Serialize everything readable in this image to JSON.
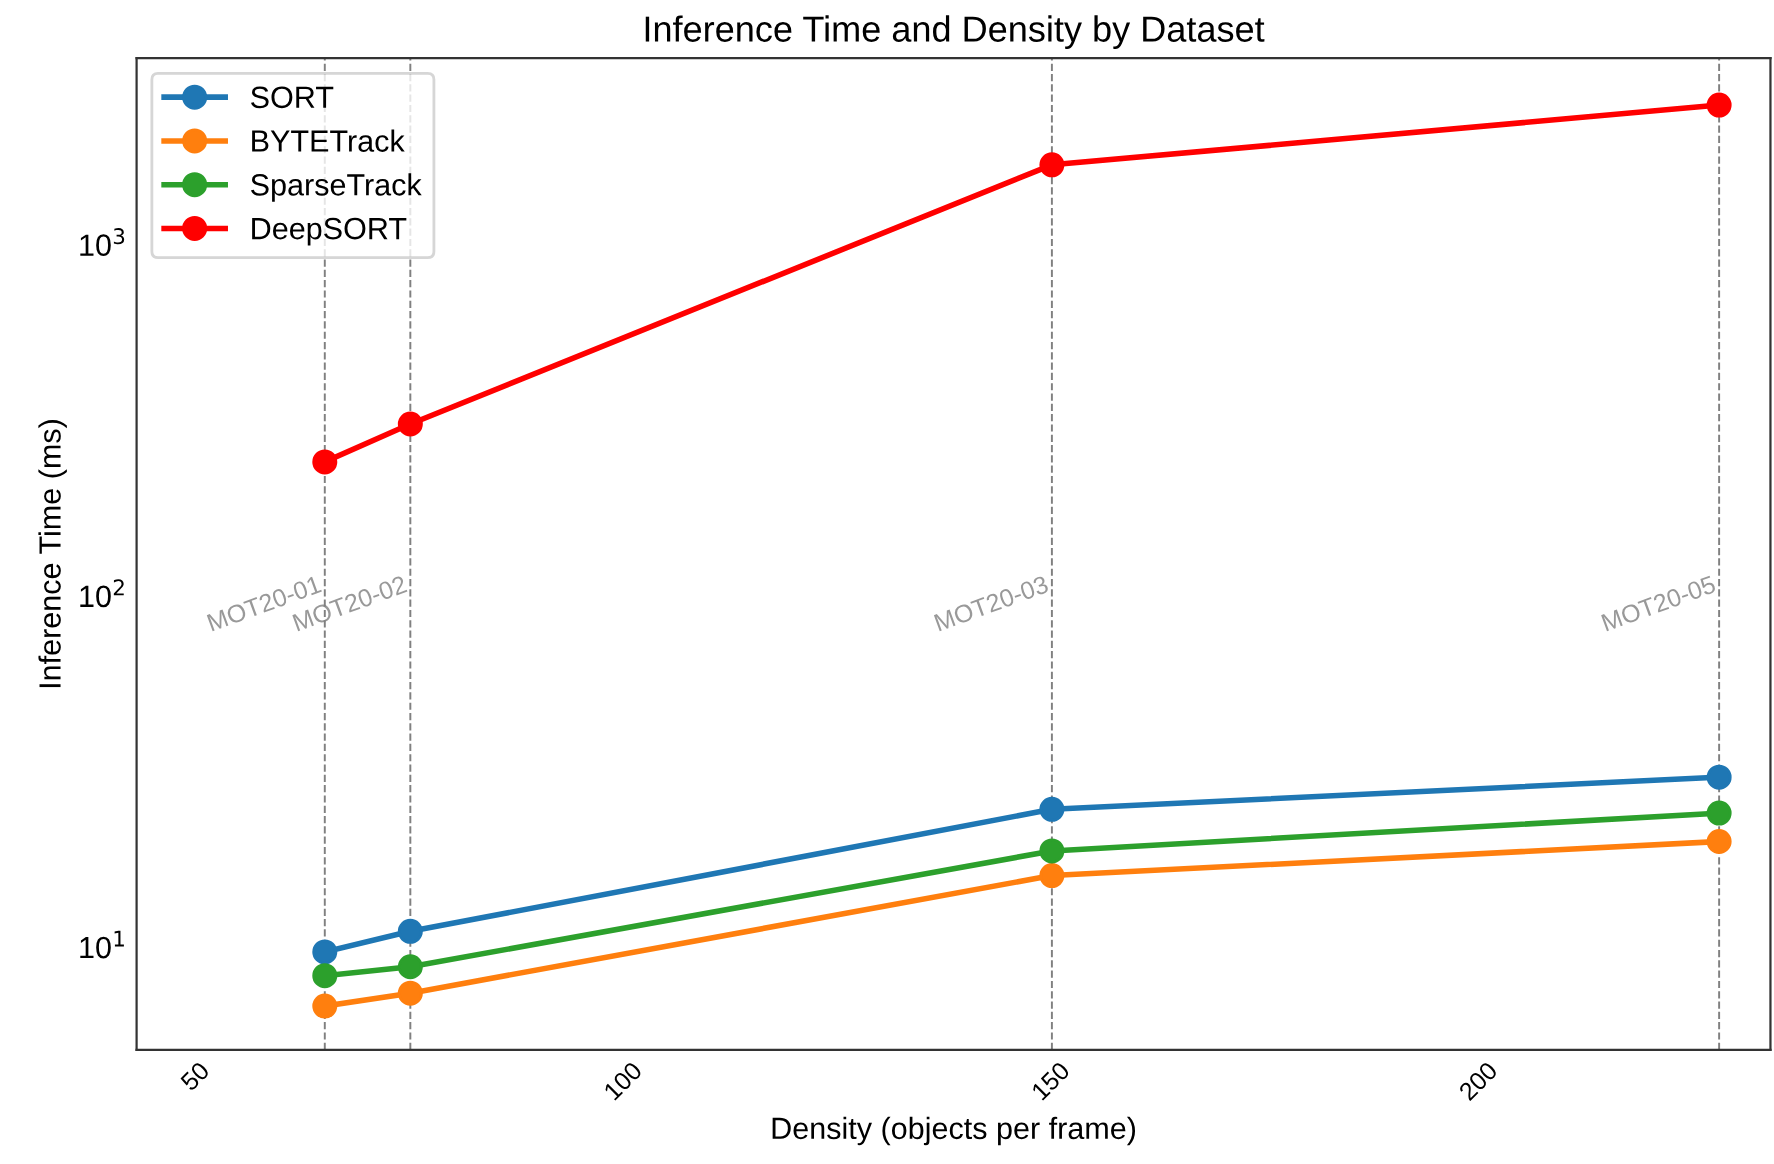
{
  "chart_data": {
    "type": "line",
    "title": "Inference Time and Density by Dataset",
    "xlabel": "Density (objects per frame)",
    "ylabel": "Inference Time (ms)",
    "x": [
      65,
      75,
      150,
      228
    ],
    "series": [
      {
        "name": "SORT",
        "color": "#1f77b4",
        "values": [
          9.7,
          11.1,
          24.7,
          30.5
        ]
      },
      {
        "name": "BYTETrack",
        "color": "#ff7f0e",
        "values": [
          6.8,
          7.4,
          16.0,
          20.0
        ]
      },
      {
        "name": "SparseTrack",
        "color": "#2ca02c",
        "values": [
          8.3,
          8.8,
          18.8,
          24.1
        ]
      },
      {
        "name": "DeepSORT",
        "color": "#ff0000",
        "values": [
          241,
          309,
          1690,
          2500
        ]
      }
    ],
    "log": "y",
    "xlim": [
      43,
      234
    ],
    "ylim": [
      5.1,
      3400
    ],
    "xticks": [
      50,
      100,
      150,
      200
    ],
    "yticks": [
      {
        "value": 10,
        "label": "10$^{1}$"
      },
      {
        "value": 100,
        "label": "10$^{2}$"
      },
      {
        "value": 1000,
        "label": "10$^{3}$"
      }
    ],
    "ref_lines": [
      {
        "axis": "x",
        "value": 65,
        "label": "MOT20-01",
        "color": "#808080",
        "line_style": "dashed"
      },
      {
        "axis": "x",
        "value": 75,
        "label": "MOT20-02",
        "color": "#808080",
        "line_style": "dashed"
      },
      {
        "axis": "x",
        "value": 150,
        "label": "MOT20-03",
        "color": "#808080",
        "line_style": "dashed"
      },
      {
        "axis": "x",
        "value": 228,
        "label": "MOT20-05",
        "color": "#808080",
        "line_style": "dashed"
      }
    ],
    "grid": false,
    "legend": "top left",
    "marker": "circle",
    "line_style": "solid"
  }
}
